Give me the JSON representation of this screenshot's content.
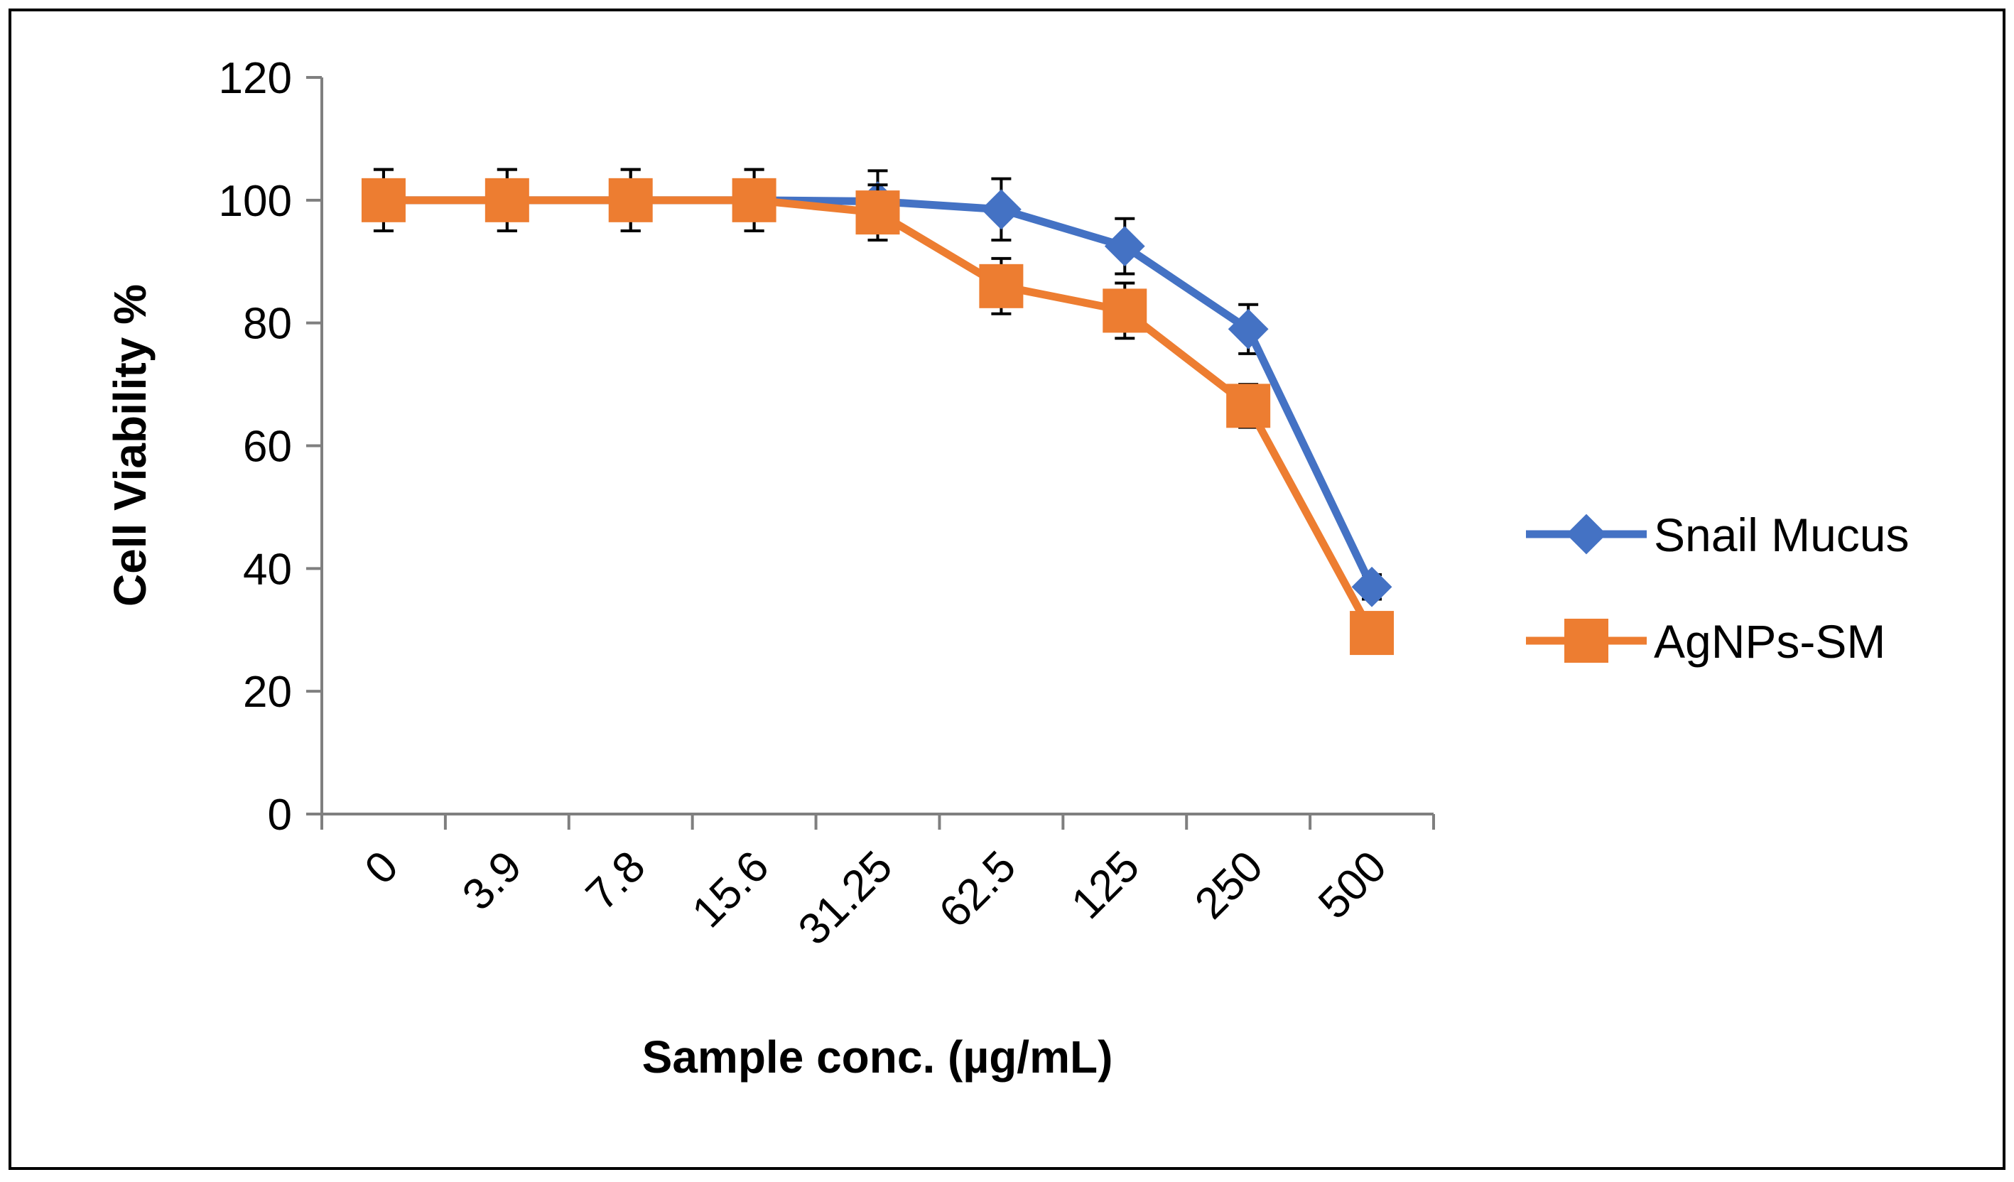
{
  "chart_data": {
    "type": "line",
    "title": "",
    "xlabel": "Sample conc. (µg/mL)",
    "ylabel": "Cell Viability %",
    "categories": [
      "0",
      "3.9",
      "7.8",
      "15.6",
      "31.25",
      "62.5",
      "125",
      "250",
      "500"
    ],
    "ylim": [
      0,
      120
    ],
    "yticks": [
      "0",
      "20",
      "40",
      "60",
      "80",
      "100",
      "120"
    ],
    "grid": false,
    "legend_position": "right",
    "series": [
      {
        "name": "Snail Mucus",
        "color": "#4472C4",
        "marker": "diamond",
        "values": [
          100,
          100,
          100,
          100,
          99.8,
          98.5,
          92.5,
          79,
          37
        ],
        "errors": [
          5,
          5,
          5,
          5,
          5,
          5,
          4.5,
          4,
          2
        ]
      },
      {
        "name": "AgNPs-SM",
        "color": "#ED7D31",
        "marker": "square",
        "values": [
          100,
          100,
          100,
          100,
          98,
          86,
          82,
          66.5,
          29.5
        ],
        "errors": [
          5,
          5,
          5,
          5,
          4.5,
          4.5,
          4.5,
          3.5,
          1.5
        ]
      }
    ]
  }
}
